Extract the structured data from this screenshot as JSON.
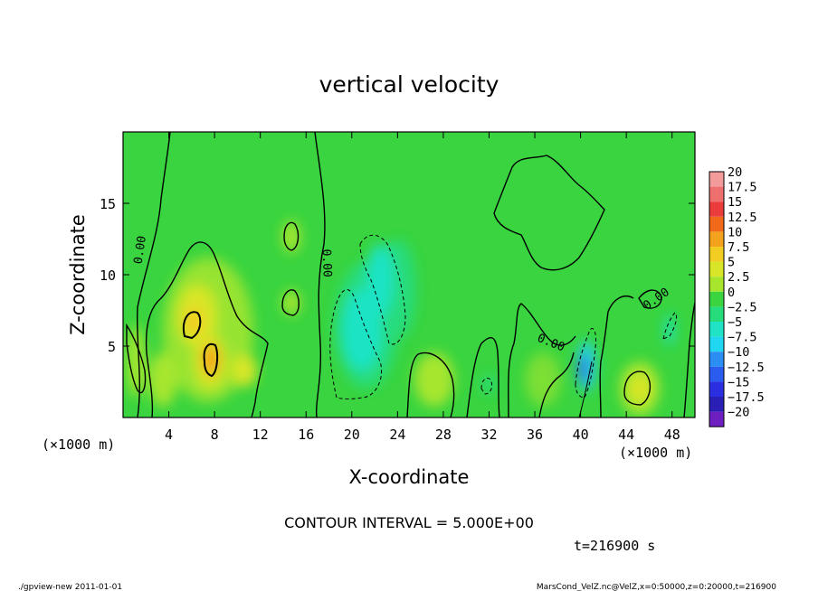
{
  "chart_data": {
    "type": "heatmap",
    "title": "vertical velocity",
    "xlabel": "X-coordinate",
    "ylabel": "Z-coordinate",
    "x_unit": "(×1000 m)",
    "y_unit": "(×1000 m)",
    "xlim": [
      0,
      50
    ],
    "ylim": [
      0,
      20
    ],
    "x_ticks": [
      4,
      8,
      12,
      16,
      20,
      24,
      28,
      32,
      36,
      40,
      44,
      48
    ],
    "y_ticks": [
      5,
      10,
      15
    ],
    "colorbar": {
      "labels": [
        "20",
        "17.5",
        "15",
        "12.5",
        "10",
        "7.5",
        "5",
        "2.5",
        "0",
        "−2.5",
        "−5",
        "−7.5",
        "−10",
        "−12.5",
        "−15",
        "−17.5",
        "−20"
      ],
      "colors": [
        "#f39a9a",
        "#ef6f6f",
        "#eb3c3c",
        "#f06a1a",
        "#f3a21e",
        "#f2cc23",
        "#d9e628",
        "#a7e62d",
        "#39d43f",
        "#27dc7b",
        "#1fe3c4",
        "#20d6f0",
        "#2a8ef3",
        "#2a5cf0",
        "#2b2fe2",
        "#2a1fb5",
        "#6e1fc0"
      ]
    },
    "contour_labels": [
      {
        "text": "0.00",
        "x": 1.8,
        "y": 11.7,
        "rotate": -82
      },
      {
        "text": "0.00",
        "x": 17.5,
        "y": 10.8,
        "rotate": 88
      },
      {
        "text": "0.00",
        "x": 37.3,
        "y": 5.0,
        "rotate": 22
      },
      {
        "text": "0.00",
        "x": 46.8,
        "y": 8.1,
        "rotate": -35
      }
    ],
    "contour_interval_label": "CONTOUR INTERVAL = 5.000E+00",
    "time_label": "t=216900 s"
  },
  "footer": {
    "left": "./gpview-new   2011-01-01",
    "right": "MarsCond_VelZ.nc@VelZ,x=0:50000,z=0:20000,t=216900"
  }
}
